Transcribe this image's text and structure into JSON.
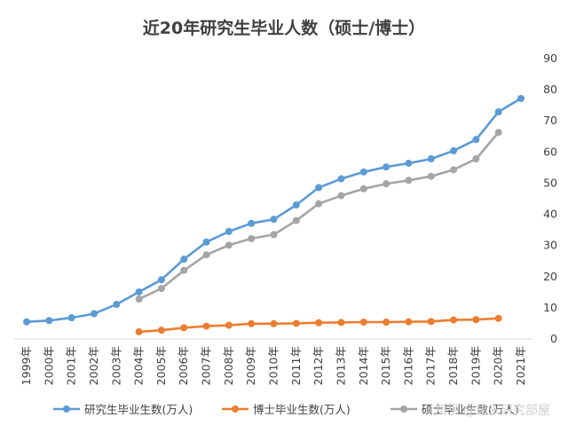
{
  "chart_data": {
    "type": "line",
    "title": "近20年研究生毕业人数（硕士/博士）",
    "categories": [
      "1999年",
      "2000年",
      "2001年",
      "2002年",
      "2003年",
      "2004年",
      "2005年",
      "2006年",
      "2007年",
      "2008年",
      "2009年",
      "2010年",
      "2011年",
      "2012年",
      "2013年",
      "2014年",
      "2015年",
      "2016年",
      "2017年",
      "2018年",
      "2019年",
      "2020年",
      "2021年"
    ],
    "series": [
      {
        "name": "研究生毕业生数(万人)",
        "color": "#5b9bd5",
        "values": [
          5.5,
          5.9,
          6.8,
          8.1,
          11.1,
          15.1,
          19.0,
          25.6,
          31.1,
          34.5,
          37.1,
          38.4,
          43.0,
          48.6,
          51.4,
          53.6,
          55.2,
          56.4,
          57.8,
          60.4,
          64.0,
          72.9,
          77.2
        ]
      },
      {
        "name": "博士毕业生数(万人)",
        "color": "#ed7d31",
        "values": [
          null,
          null,
          null,
          null,
          null,
          2.3,
          2.8,
          3.6,
          4.1,
          4.4,
          4.9,
          4.9,
          5.0,
          5.2,
          5.3,
          5.4,
          5.4,
          5.5,
          5.6,
          6.1,
          6.2,
          6.6,
          null
        ]
      },
      {
        "name": "硕士毕业生数(万人)",
        "color": "#a5a5a5",
        "values": [
          null,
          null,
          null,
          null,
          null,
          12.8,
          16.2,
          22.0,
          27.0,
          30.1,
          32.2,
          33.5,
          38.0,
          43.4,
          46.0,
          48.2,
          49.8,
          50.9,
          52.2,
          54.3,
          57.8,
          66.3,
          null
        ]
      }
    ],
    "yticks": [
      "0",
      "10",
      "20",
      "30",
      "40",
      "50",
      "60",
      "70",
      "80",
      "90"
    ],
    "ylim": [
      0,
      90
    ],
    "y_axis_side": "right",
    "grid": false,
    "legend_position": "bottom",
    "watermark": "知乎 @易米研究部屋"
  }
}
